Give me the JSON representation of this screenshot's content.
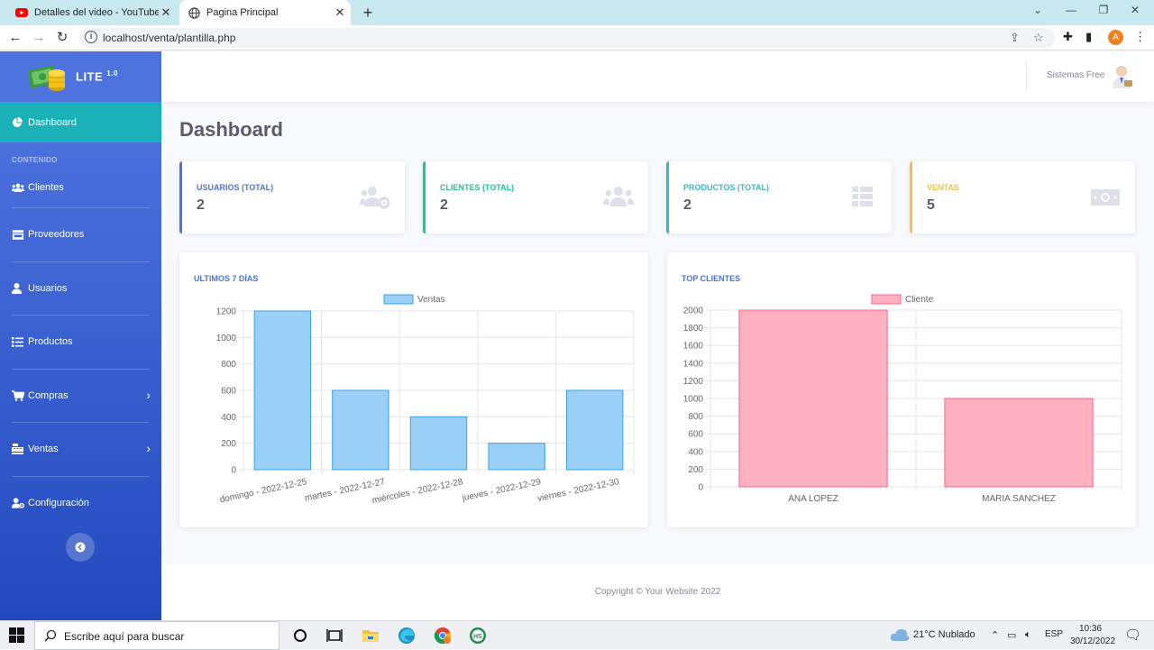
{
  "browser": {
    "tabs": [
      {
        "title": "Detalles del video - YouTube Stu",
        "active": false
      },
      {
        "title": "Pagina Principal",
        "active": true
      }
    ],
    "url": "localhost/venta/plantilla.php",
    "profile_initial": "A"
  },
  "brand": {
    "name": "LITE",
    "version": "1.0"
  },
  "sidebar": {
    "active_item": "Dashboard",
    "section_label": "CONTENIDO",
    "items": [
      {
        "label": "Clientes",
        "icon": "users-icon",
        "has_submenu": false
      },
      {
        "label": "Proveedores",
        "icon": "store-icon",
        "has_submenu": false
      },
      {
        "label": "Usuarios",
        "icon": "user-icon",
        "has_submenu": false
      },
      {
        "label": "Productos",
        "icon": "list-icon",
        "has_submenu": false
      },
      {
        "label": "Compras",
        "icon": "cart-icon",
        "has_submenu": true
      },
      {
        "label": "Ventas",
        "icon": "cash-register-icon",
        "has_submenu": true
      },
      {
        "label": "Configuración",
        "icon": "user-cog-icon",
        "has_submenu": false
      }
    ]
  },
  "topbar": {
    "user_name": "Sistemas Free"
  },
  "page": {
    "title": "Dashboard"
  },
  "stats": [
    {
      "label": "USUARIOS (TOTAL)",
      "value": "2",
      "color": "#4e73df",
      "icon": "users-cog-icon"
    },
    {
      "label": "CLIENTES (TOTAL)",
      "value": "2",
      "color": "#1cc88a",
      "icon": "users-icon"
    },
    {
      "label": "PRODUCTOS (TOTAL)",
      "value": "2",
      "color": "#36b9cc",
      "icon": "table-icon"
    },
    {
      "label": "VENTAS",
      "value": "5",
      "color": "#f6c23e",
      "icon": "money-bill-icon"
    }
  ],
  "chart_data": [
    {
      "type": "bar",
      "title": "ULTIMOS 7 DÍAS",
      "categories": [
        "domingo - 2022-12-25",
        "martes - 2022-12-27",
        "miércoles - 2022-12-28",
        "jueves - 2022-12-29",
        "viernes - 2022-12-30"
      ],
      "series": [
        {
          "name": "Ventas",
          "values": [
            1200,
            600,
            400,
            200,
            600
          ],
          "color": "#9ad0f5",
          "border": "#36a2eb"
        }
      ],
      "ylim": [
        0,
        1200
      ],
      "yticks": [
        0,
        200,
        400,
        600,
        800,
        1000,
        1200
      ],
      "legend": "top",
      "grid": true
    },
    {
      "type": "bar",
      "title": "TOP CLIENTES",
      "categories": [
        "ANA LOPEZ",
        "MARIA SANCHEZ"
      ],
      "series": [
        {
          "name": "Cliente",
          "values": [
            2000,
            1000
          ],
          "color": "#ffb1c1",
          "border": "#ff6384"
        }
      ],
      "ylim": [
        0,
        2000
      ],
      "yticks": [
        0,
        200,
        400,
        600,
        800,
        1000,
        1200,
        1400,
        1600,
        1800,
        2000
      ],
      "legend": "top",
      "grid": true
    }
  ],
  "footer": {
    "text": "Copyright © Your Website 2022"
  },
  "taskbar": {
    "search_placeholder": "Escribe aquí para buscar",
    "weather": "21°C  Nublado",
    "language": "ESP",
    "time": "10:36",
    "date": "30/12/2022"
  }
}
